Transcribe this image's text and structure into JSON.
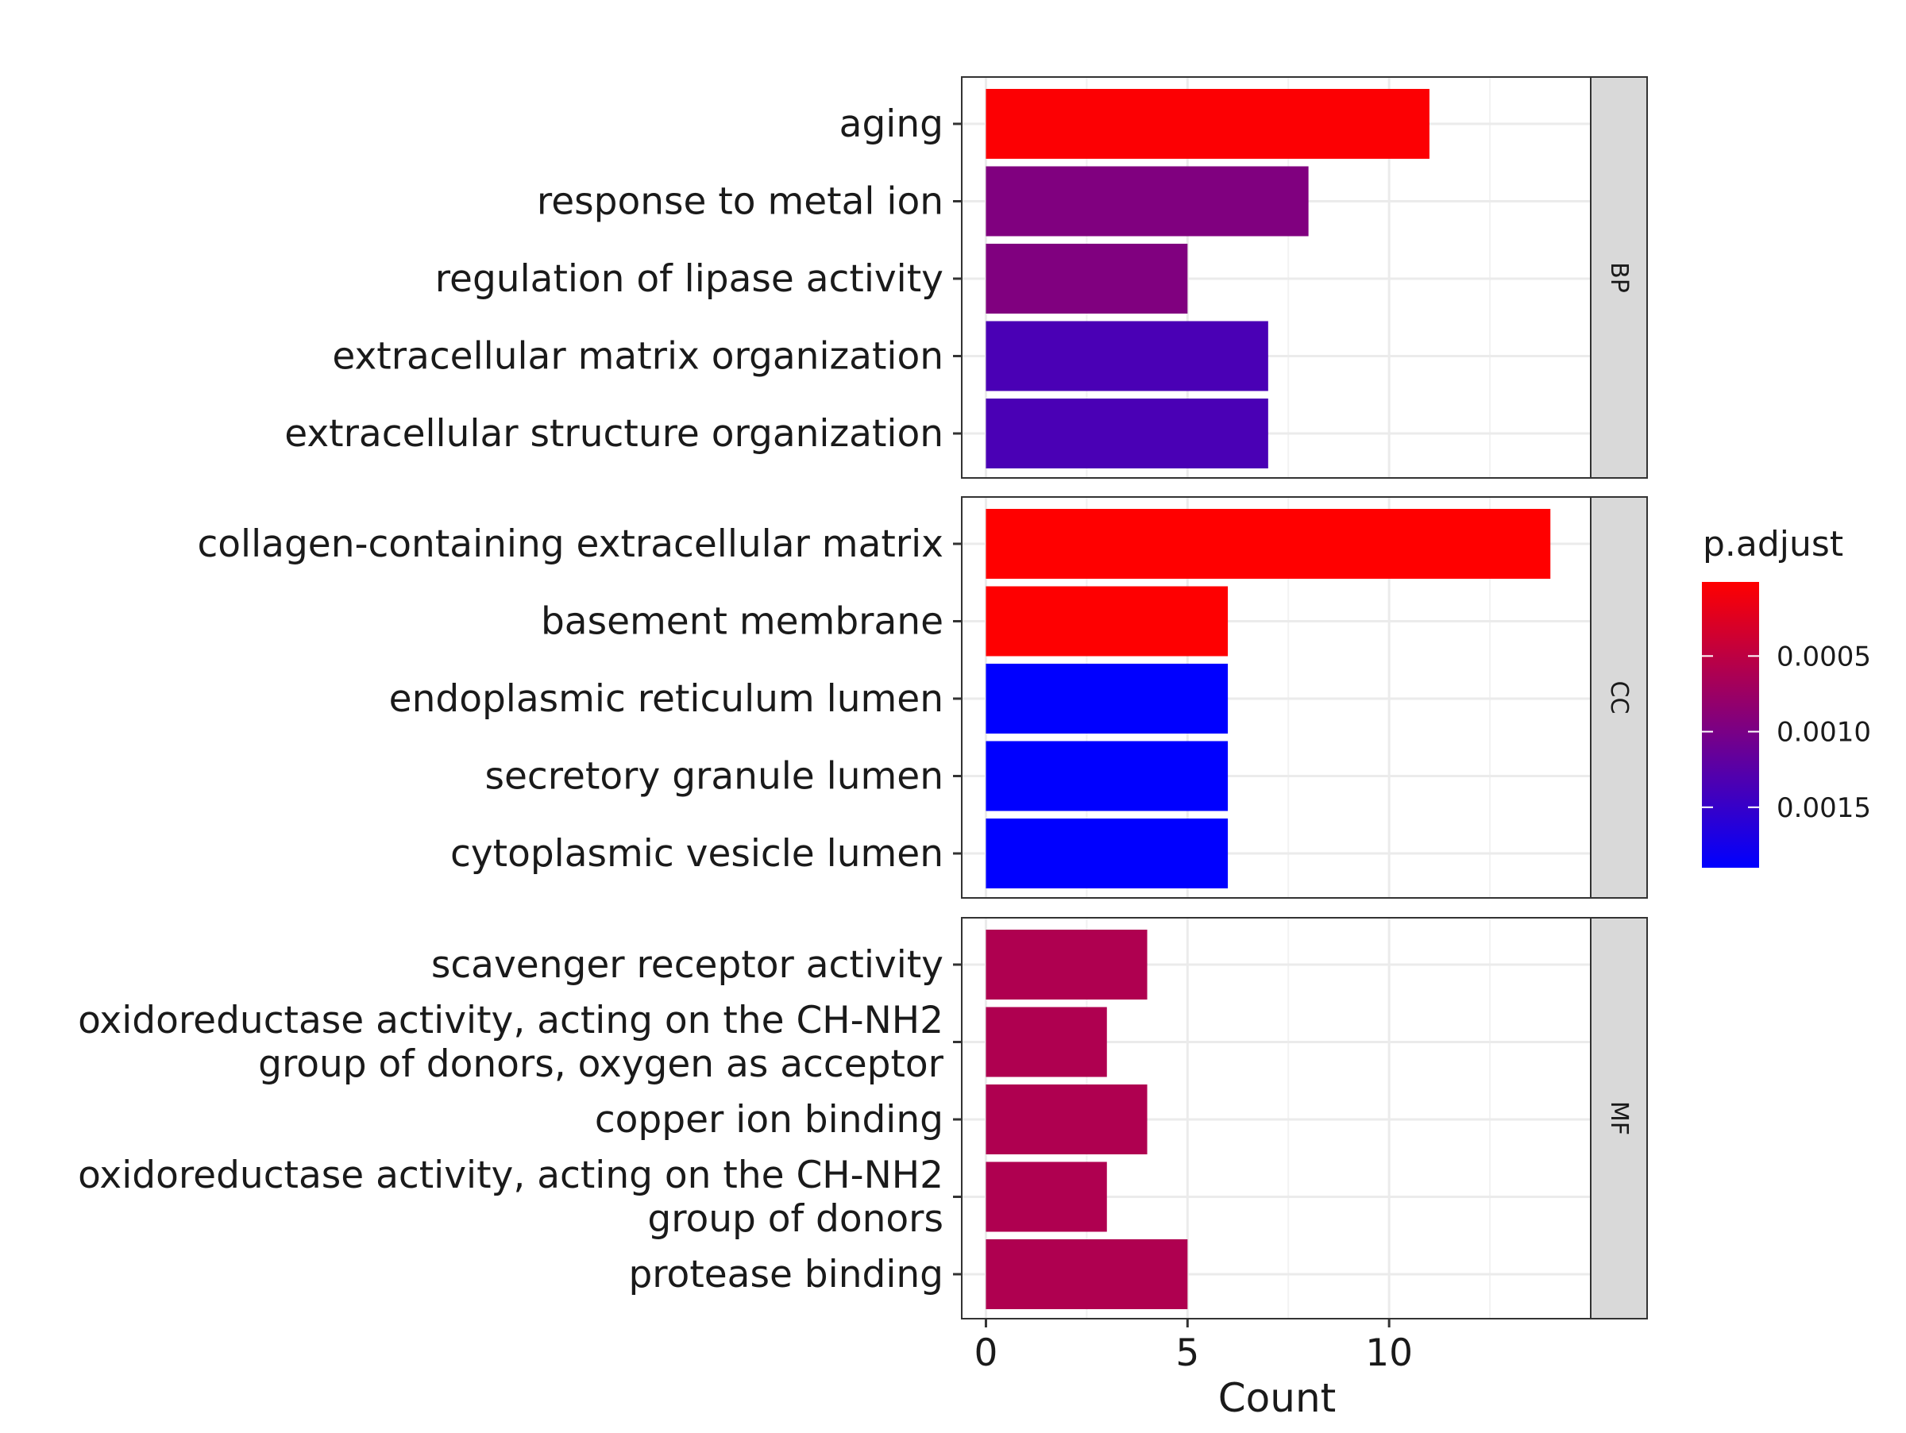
{
  "chart_data": {
    "type": "bar",
    "orientation": "horizontal",
    "xlabel": "Count",
    "ylabel": "",
    "xlim": [
      -0.6,
      15.0
    ],
    "x_ticks": [
      0,
      5,
      10
    ],
    "x_tick_labels": [
      "0",
      "5",
      "10"
    ],
    "grid": true,
    "facets": [
      {
        "name": "BP",
        "bars": [
          {
            "label": "aging",
            "value": 11,
            "p_adjust": 3e-05
          },
          {
            "label": "response to metal ion",
            "value": 8,
            "p_adjust": 0.00095
          },
          {
            "label": "regulation of lipase activity",
            "value": 5,
            "p_adjust": 0.00095
          },
          {
            "label": "extracellular matrix organization",
            "value": 7,
            "p_adjust": 0.00135
          },
          {
            "label": "extracellular structure organization",
            "value": 7,
            "p_adjust": 0.00135
          }
        ]
      },
      {
        "name": "CC",
        "bars": [
          {
            "label": "collagen-containing extracellular matrix",
            "value": 14,
            "p_adjust": 1e-05
          },
          {
            "label": "basement membrane",
            "value": 6,
            "p_adjust": 2e-05
          },
          {
            "label": "endoplasmic reticulum lumen",
            "value": 6,
            "p_adjust": 0.0019
          },
          {
            "label": "secretory granule lumen",
            "value": 6,
            "p_adjust": 0.0019
          },
          {
            "label": "cytoplasmic vesicle lumen",
            "value": 6,
            "p_adjust": 0.0019
          }
        ]
      },
      {
        "name": "MF",
        "bars": [
          {
            "label": "scavenger receptor activity",
            "value": 4,
            "p_adjust": 0.0006
          },
          {
            "label": "oxidoreductase activity, acting on the CH-NH2 group of donors, oxygen as acceptor",
            "label_lines": [
              "oxidoreductase activity, acting on the CH-NH2",
              "group of donors, oxygen as acceptor"
            ],
            "value": 3,
            "p_adjust": 0.0006
          },
          {
            "label": "copper ion binding",
            "value": 4,
            "p_adjust": 0.0006
          },
          {
            "label": "oxidoreductase activity, acting on the CH-NH2 group of donors",
            "label_lines": [
              "oxidoreductase activity, acting on the CH-NH2",
              "group of donors"
            ],
            "value": 3,
            "p_adjust": 0.0006
          },
          {
            "label": "protease binding",
            "value": 5,
            "p_adjust": 0.0006
          }
        ]
      }
    ],
    "legend": {
      "title": "p.adjust",
      "position": "right",
      "range": [
        1e-05,
        0.0019
      ],
      "ticks": [
        0.0005,
        0.001,
        0.0015
      ],
      "tick_labels": [
        "0.0005",
        "0.0010",
        "0.0015"
      ],
      "low_color": "#ff0000",
      "high_color": "#0000ff"
    }
  }
}
